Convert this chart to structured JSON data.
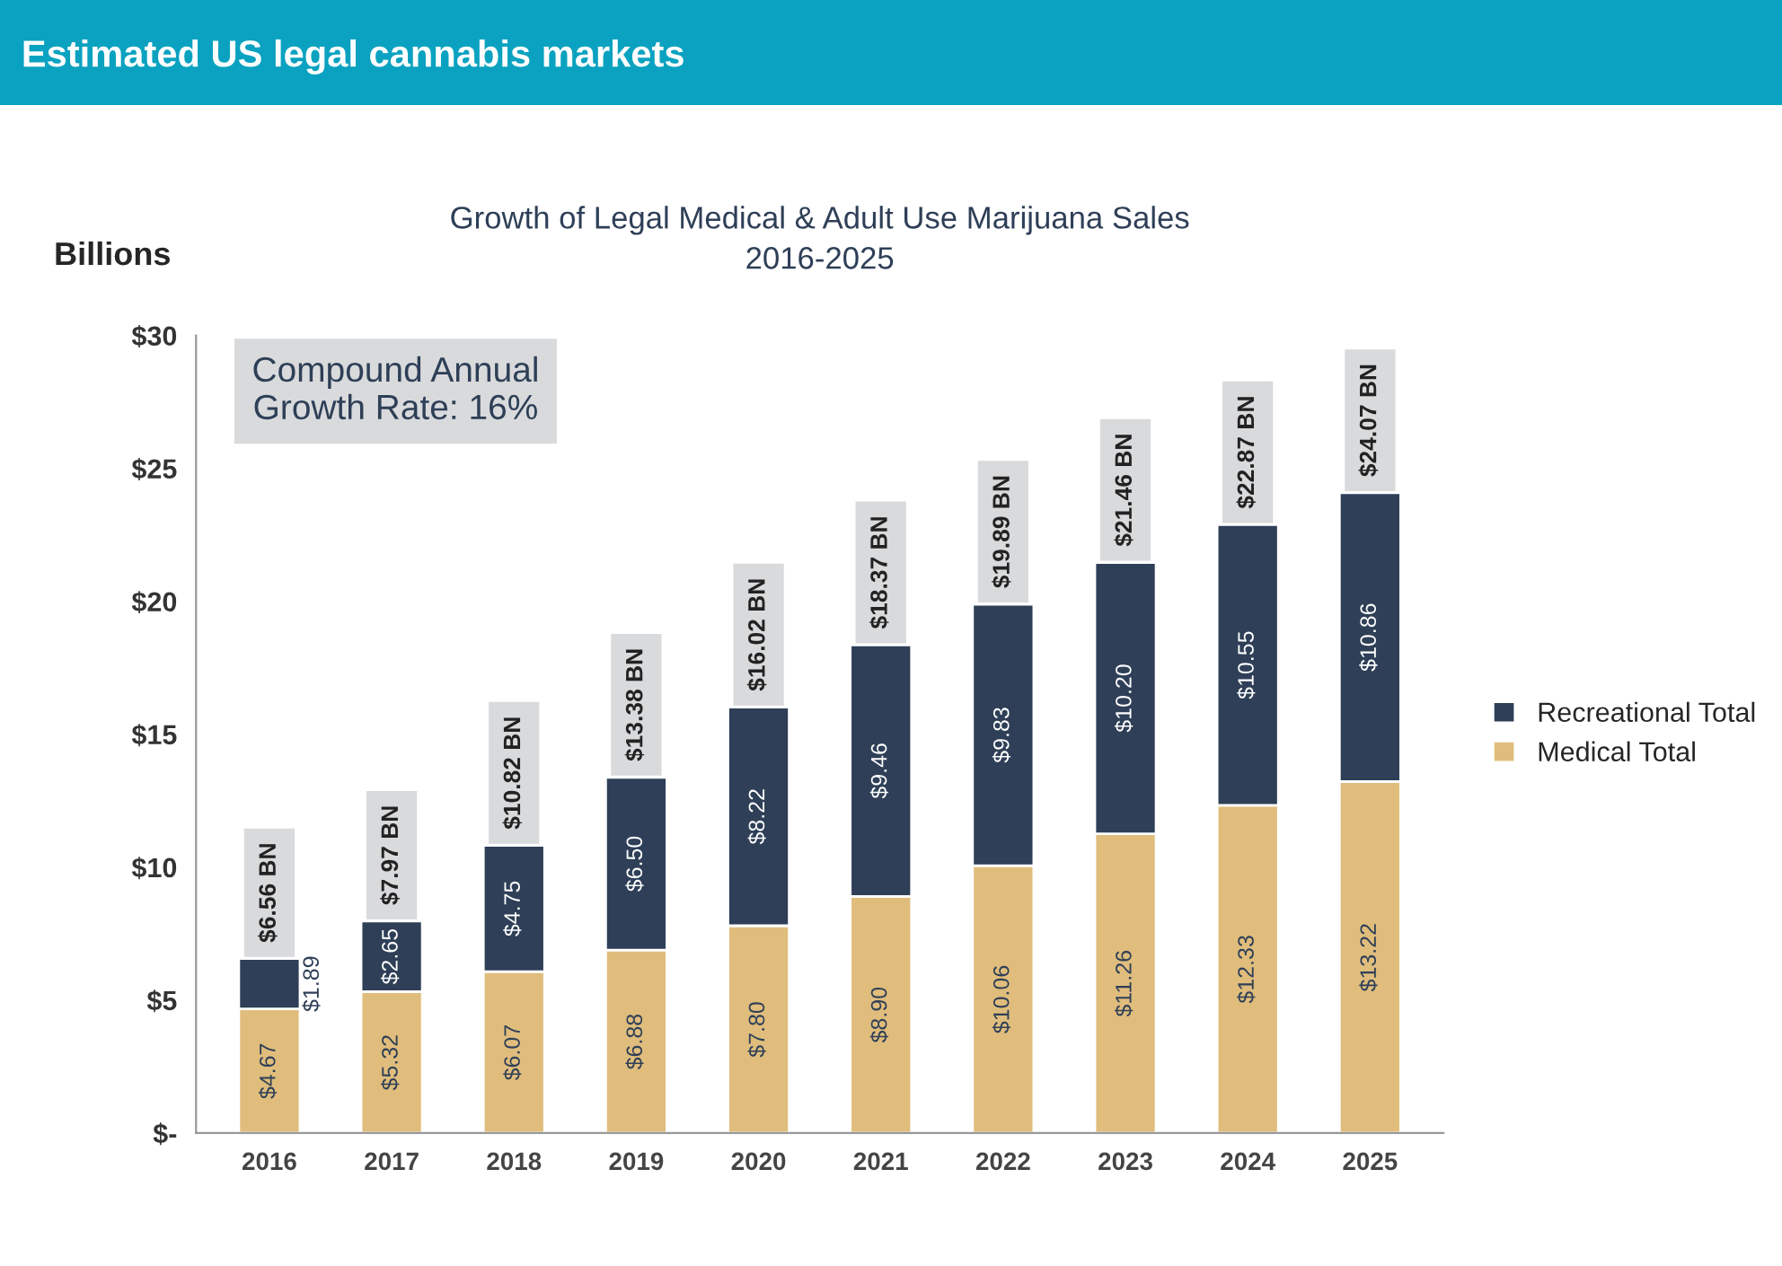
{
  "chart_data": {
    "type": "bar",
    "title": "Estimated US legal cannabis markets",
    "subtitle": "Growth of Legal Medical & Adult Use Marijuana Sales\n2016-2025",
    "ylabel": "Billions",
    "categories": [
      "2016",
      "2017",
      "2018",
      "2019",
      "2020",
      "2021",
      "2022",
      "2023",
      "2024",
      "2025"
    ],
    "stacked": true,
    "series": [
      {
        "name": "Medical Total",
        "color": "#e0bd7c",
        "values": [
          4.67,
          5.32,
          6.07,
          6.88,
          7.8,
          8.9,
          10.06,
          11.26,
          12.33,
          13.22
        ],
        "value_labels": [
          "$4.67",
          "$5.32",
          "$6.07",
          "$6.88",
          "$7.80",
          "$8.90",
          "$10.06",
          "$11.26",
          "$12.33",
          "$13.22"
        ]
      },
      {
        "name": "Recreational Total",
        "color": "#2e3f57",
        "values": [
          1.89,
          2.65,
          4.75,
          6.5,
          8.22,
          9.46,
          9.83,
          10.2,
          10.55,
          10.86
        ],
        "value_labels": [
          "$1.89",
          "$2.65",
          "$4.75",
          "$6.50",
          "$8.22",
          "$9.46",
          "$9.83",
          "$10.20",
          "$10.55",
          "$10.86"
        ]
      }
    ],
    "totals": [
      "$6.56 BN",
      "$7.97 BN",
      "$10.82 BN",
      "$13.38 BN",
      "$16.02 BN",
      "$18.37 BN",
      "$19.89 BN",
      "$21.46 BN",
      "$22.87 BN",
      "$24.07 BN"
    ],
    "ylim": [
      0,
      30
    ],
    "yticks": [
      {
        "value": 0,
        "label": "$-"
      },
      {
        "value": 5,
        "label": "$5"
      },
      {
        "value": 10,
        "label": "$10"
      },
      {
        "value": 15,
        "label": "$15"
      },
      {
        "value": 20,
        "label": "$20"
      },
      {
        "value": 25,
        "label": "$25"
      },
      {
        "value": 30,
        "label": "$30"
      }
    ],
    "annotations": [
      "Compound Annual\nGrowth Rate: 16%"
    ],
    "legend": "right",
    "grid": false
  }
}
